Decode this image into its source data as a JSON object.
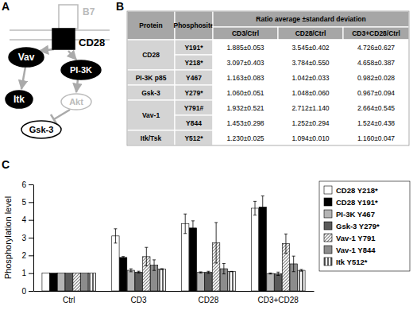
{
  "diagram": {
    "label": "A",
    "nodes": [
      {
        "label": "B7"
      },
      {
        "label": "CD28"
      },
      {
        "label": "Vav"
      },
      {
        "label": "PI-3K"
      },
      {
        "label": "Itk"
      },
      {
        "label": "Akt"
      },
      {
        "label": "Gsk-3"
      }
    ]
  },
  "table": {
    "label": "B",
    "header": [
      "Protein",
      "Phosphosite",
      "Ratio average ±standard deviation"
    ],
    "subheader": [
      "CD3/Ctrl",
      "CD28/Ctrl",
      "CD3+CD28/Ctrl"
    ],
    "groups": [
      {
        "protein": "CD28",
        "rows": [
          [
            "Y191*",
            "1.885±0.053",
            "3.545±0.402",
            "4.726±0.627"
          ],
          [
            "Y218*",
            "3.097±0.403",
            "3.784±0.550",
            "4.658±0.387"
          ]
        ]
      },
      {
        "protein": "PI-3K p85",
        "rows": [
          [
            "Y467",
            "1.163±0.083",
            "1.042±0.033",
            "0.982±0.028"
          ]
        ]
      },
      {
        "protein": "Gsk-3",
        "rows": [
          [
            "Y279*",
            "1.060±0.051",
            "1.048±0.060",
            "0.967±0.094"
          ]
        ]
      },
      {
        "protein": "Vav-1",
        "rows": [
          [
            "Y791#",
            "1.932±0.521",
            "2.712±1.140",
            "2.664±0.545"
          ],
          [
            "Y844",
            "1.453±0.298",
            "1.252±0.294",
            "1.524±0.438"
          ]
        ]
      },
      {
        "protein": "Itk/Tsk",
        "rows": [
          [
            "Y512*",
            "1.230±0.025",
            "1.094±0.010",
            "1.160±0.047"
          ]
        ]
      }
    ]
  },
  "panel_c": {
    "label": "C"
  },
  "chart_data": {
    "type": "bar",
    "y_label": "Phosphorylation level",
    "categories": [
      "Ctrl",
      "CD3",
      "CD28",
      "CD3+CD28"
    ],
    "series": [
      {
        "name": "CD28 Y218*",
        "color": "#ffffff",
        "values": [
          1,
          3.097,
          3.784,
          4.658
        ],
        "errors": [
          null,
          0.403,
          0.55,
          0.387
        ]
      },
      {
        "name": "CD28 Y191*",
        "color": "#000000",
        "values": [
          1,
          1.885,
          3.545,
          4.726
        ],
        "errors": [
          null,
          0.053,
          0.402,
          0.627
        ]
      },
      {
        "name": "PI-3K Y467",
        "color": "#b4b4b4",
        "values": [
          1,
          1.163,
          1.042,
          0.982
        ],
        "errors": [
          null,
          0.083,
          0.033,
          0.028
        ]
      },
      {
        "name": "Gsk-3 Y279*",
        "color": "#5a5a5a",
        "values": [
          1,
          1.06,
          1.048,
          0.967
        ],
        "errors": [
          null,
          0.051,
          0.06,
          0.094
        ]
      },
      {
        "name": "Vav-1 Y791",
        "color": "#7f7f7f",
        "values": [
          1,
          1.932,
          2.712,
          2.664
        ],
        "errors": [
          null,
          0.521,
          1.14,
          0.545
        ]
      },
      {
        "name": "Vav-1 Y844",
        "color": "#8c8c8c",
        "values": [
          1,
          1.453,
          1.252,
          1.524
        ],
        "errors": [
          null,
          0.298,
          0.294,
          0.438
        ]
      },
      {
        "name": "Itk Y512*",
        "color": "#606060",
        "values": [
          1,
          1.23,
          1.094,
          1.16
        ],
        "errors": [
          null,
          0.025,
          0.01,
          0.047
        ]
      }
    ],
    "ylim": [
      0,
      6
    ],
    "yticks": [
      0,
      1,
      2,
      3,
      4,
      5,
      6
    ],
    "grid": false,
    "legend": "right"
  }
}
